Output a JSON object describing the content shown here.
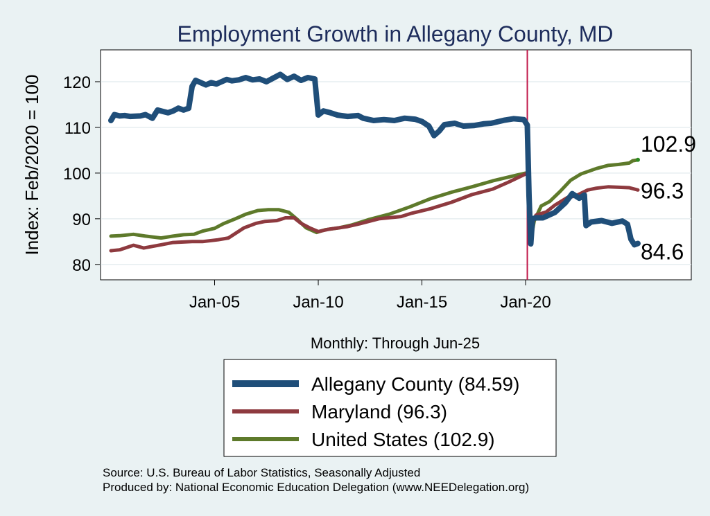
{
  "chart_data": {
    "type": "line",
    "title": "Employment Growth in Allegany  County, MD",
    "xlabel": "Monthly: Through Jun-25",
    "ylabel": "Index: Feb/2020 = 100",
    "xlim": [
      "2000-01",
      "2025-06"
    ],
    "ylim": [
      78,
      125
    ],
    "xticks": [
      {
        "date": "2005-01",
        "label": "Jan-05"
      },
      {
        "date": "2010-01",
        "label": "Jan-10"
      },
      {
        "date": "2015-01",
        "label": "Jan-15"
      },
      {
        "date": "2020-01",
        "label": "Jan-20"
      }
    ],
    "yticks": [
      80,
      90,
      100,
      110,
      120
    ],
    "grid": true,
    "vline": {
      "date": "2020-02",
      "color": "#c0184a"
    },
    "end_labels": [
      {
        "series": "United States",
        "value": 102.9,
        "label": "102.9"
      },
      {
        "series": "Maryland",
        "value": 96.3,
        "label": "96.3"
      },
      {
        "series": "Allegany  County",
        "value": 84.6,
        "label": "84.6"
      }
    ],
    "legend": {
      "position": "bottom"
    },
    "series": [
      {
        "name": "Allegany  County",
        "legend": "Allegany  County (84.59)",
        "color": "#1f4e79",
        "points": [
          [
            "2000-01",
            111.5
          ],
          [
            "2000-03",
            112.8
          ],
          [
            "2000-06",
            112.5
          ],
          [
            "2000-09",
            112.6
          ],
          [
            "2000-12",
            112.4
          ],
          [
            "2001-06",
            112.5
          ],
          [
            "2001-09",
            112.8
          ],
          [
            "2002-01",
            112.0
          ],
          [
            "2002-04",
            113.8
          ],
          [
            "2002-07",
            113.5
          ],
          [
            "2002-10",
            113.2
          ],
          [
            "2003-01",
            113.6
          ],
          [
            "2003-04",
            114.2
          ],
          [
            "2003-07",
            113.8
          ],
          [
            "2003-10",
            114.2
          ],
          [
            "2003-12",
            119.0
          ],
          [
            "2004-02",
            120.3
          ],
          [
            "2004-05",
            119.8
          ],
          [
            "2004-08",
            119.3
          ],
          [
            "2004-11",
            119.8
          ],
          [
            "2005-02",
            119.5
          ],
          [
            "2005-05",
            120.0
          ],
          [
            "2005-08",
            120.5
          ],
          [
            "2005-11",
            120.2
          ],
          [
            "2006-03",
            120.4
          ],
          [
            "2006-07",
            120.9
          ],
          [
            "2006-11",
            120.4
          ],
          [
            "2007-03",
            120.6
          ],
          [
            "2007-07",
            120.0
          ],
          [
            "2007-11",
            120.8
          ],
          [
            "2008-03",
            121.6
          ],
          [
            "2008-07",
            120.5
          ],
          [
            "2008-11",
            121.2
          ],
          [
            "2009-03",
            120.3
          ],
          [
            "2009-07",
            120.9
          ],
          [
            "2009-11",
            120.6
          ],
          [
            "2010-01",
            112.7
          ],
          [
            "2010-04",
            113.6
          ],
          [
            "2010-08",
            113.2
          ],
          [
            "2010-12",
            112.7
          ],
          [
            "2011-06",
            112.4
          ],
          [
            "2011-12",
            112.6
          ],
          [
            "2012-03",
            112.0
          ],
          [
            "2012-09",
            111.5
          ],
          [
            "2013-03",
            111.7
          ],
          [
            "2013-09",
            111.5
          ],
          [
            "2014-03",
            112.0
          ],
          [
            "2014-09",
            111.8
          ],
          [
            "2015-01",
            111.3
          ],
          [
            "2015-05",
            110.3
          ],
          [
            "2015-08",
            108.2
          ],
          [
            "2015-11",
            109.2
          ],
          [
            "2016-02",
            110.6
          ],
          [
            "2016-08",
            110.9
          ],
          [
            "2017-01",
            110.3
          ],
          [
            "2017-07",
            110.4
          ],
          [
            "2018-01",
            110.8
          ],
          [
            "2018-05",
            110.9
          ],
          [
            "2019-01",
            111.6
          ],
          [
            "2019-06",
            111.9
          ],
          [
            "2019-12",
            111.7
          ],
          [
            "2020-02",
            110.5
          ],
          [
            "2020-03",
            95.0
          ],
          [
            "2020-04",
            84.5
          ],
          [
            "2020-05",
            90.0
          ],
          [
            "2020-07",
            90.2
          ],
          [
            "2020-11",
            90.2
          ],
          [
            "2021-06",
            91.4
          ],
          [
            "2021-12",
            93.5
          ],
          [
            "2022-04",
            95.5
          ],
          [
            "2022-08",
            94.5
          ],
          [
            "2022-11",
            95.2
          ],
          [
            "2022-12",
            88.5
          ],
          [
            "2023-03",
            89.3
          ],
          [
            "2023-09",
            89.6
          ],
          [
            "2024-03",
            89.0
          ],
          [
            "2024-09",
            89.5
          ],
          [
            "2024-12",
            88.8
          ],
          [
            "2025-02",
            85.5
          ],
          [
            "2025-04",
            84.3
          ],
          [
            "2025-06",
            84.6
          ]
        ]
      },
      {
        "name": "Maryland",
        "legend": "Maryland (96.3)",
        "color": "#8e3a3f",
        "points": [
          [
            "2000-01",
            83.0
          ],
          [
            "2000-06",
            83.2
          ],
          [
            "2001-02",
            84.2
          ],
          [
            "2001-08",
            83.6
          ],
          [
            "2002-06",
            84.3
          ],
          [
            "2003-01",
            84.8
          ],
          [
            "2003-12",
            85.0
          ],
          [
            "2004-06",
            85.0
          ],
          [
            "2005-03",
            85.4
          ],
          [
            "2005-09",
            85.8
          ],
          [
            "2006-06",
            88.0
          ],
          [
            "2007-01",
            89.0
          ],
          [
            "2007-06",
            89.4
          ],
          [
            "2008-01",
            89.6
          ],
          [
            "2008-06",
            90.2
          ],
          [
            "2008-11",
            90.2
          ],
          [
            "2009-03",
            89.0
          ],
          [
            "2009-08",
            88.0
          ],
          [
            "2010-01",
            87.2
          ],
          [
            "2010-07",
            87.7
          ],
          [
            "2011-06",
            88.3
          ],
          [
            "2012-01",
            88.9
          ],
          [
            "2012-12",
            90.0
          ],
          [
            "2014-01",
            90.5
          ],
          [
            "2014-07",
            91.2
          ],
          [
            "2015-06",
            92.2
          ],
          [
            "2016-06",
            93.6
          ],
          [
            "2017-06",
            95.3
          ],
          [
            "2018-06",
            96.5
          ],
          [
            "2019-03",
            98.0
          ],
          [
            "2020-01",
            99.8
          ],
          [
            "2020-02",
            100.0
          ],
          [
            "2020-03",
            97.0
          ],
          [
            "2020-04",
            88.0
          ],
          [
            "2020-05",
            89.0
          ],
          [
            "2020-07",
            90.8
          ],
          [
            "2021-01",
            91.5
          ],
          [
            "2021-06",
            93.0
          ],
          [
            "2022-01",
            94.6
          ],
          [
            "2022-06",
            95.0
          ],
          [
            "2023-01",
            96.3
          ],
          [
            "2023-06",
            96.7
          ],
          [
            "2024-01",
            97.0
          ],
          [
            "2024-06",
            96.9
          ],
          [
            "2025-01",
            96.8
          ],
          [
            "2025-06",
            96.3
          ]
        ]
      },
      {
        "name": "United States",
        "legend": "United States (102.9)",
        "color": "#5e7a2b",
        "points": [
          [
            "2000-01",
            86.2
          ],
          [
            "2000-06",
            86.3
          ],
          [
            "2001-02",
            86.6
          ],
          [
            "2001-09",
            86.2
          ],
          [
            "2002-06",
            85.8
          ],
          [
            "2003-01",
            86.2
          ],
          [
            "2003-07",
            86.5
          ],
          [
            "2004-01",
            86.6
          ],
          [
            "2004-06",
            87.3
          ],
          [
            "2005-01",
            87.9
          ],
          [
            "2005-06",
            88.9
          ],
          [
            "2006-01",
            90.0
          ],
          [
            "2006-07",
            91.0
          ],
          [
            "2007-02",
            91.8
          ],
          [
            "2007-08",
            92.0
          ],
          [
            "2008-02",
            92.0
          ],
          [
            "2008-08",
            91.4
          ],
          [
            "2009-01",
            89.8
          ],
          [
            "2009-06",
            88.0
          ],
          [
            "2009-12",
            87.0
          ],
          [
            "2010-05",
            87.6
          ],
          [
            "2011-01",
            88.0
          ],
          [
            "2011-08",
            88.6
          ],
          [
            "2012-06",
            89.8
          ],
          [
            "2013-06",
            91.0
          ],
          [
            "2014-06",
            92.6
          ],
          [
            "2015-06",
            94.4
          ],
          [
            "2016-06",
            95.8
          ],
          [
            "2017-06",
            97.0
          ],
          [
            "2018-06",
            98.3
          ],
          [
            "2019-06",
            99.4
          ],
          [
            "2020-01",
            100.0
          ],
          [
            "2020-02",
            100.0
          ],
          [
            "2020-03",
            99.0
          ],
          [
            "2020-04",
            85.3
          ],
          [
            "2020-06",
            89.5
          ],
          [
            "2020-10",
            92.8
          ],
          [
            "2021-03",
            93.8
          ],
          [
            "2021-09",
            96.0
          ],
          [
            "2022-03",
            98.4
          ],
          [
            "2022-09",
            99.8
          ],
          [
            "2023-06",
            101.0
          ],
          [
            "2024-01",
            101.7
          ],
          [
            "2024-07",
            101.9
          ],
          [
            "2025-01",
            102.2
          ],
          [
            "2025-03",
            102.7
          ],
          [
            "2025-06",
            102.9
          ]
        ]
      }
    ],
    "notes": [
      "Source: U.S. Bureau of Labor Statistics, Seasonally Adjusted",
      "Produced by: National Economic Education Delegation (www.NEEDelegation.org)"
    ]
  }
}
